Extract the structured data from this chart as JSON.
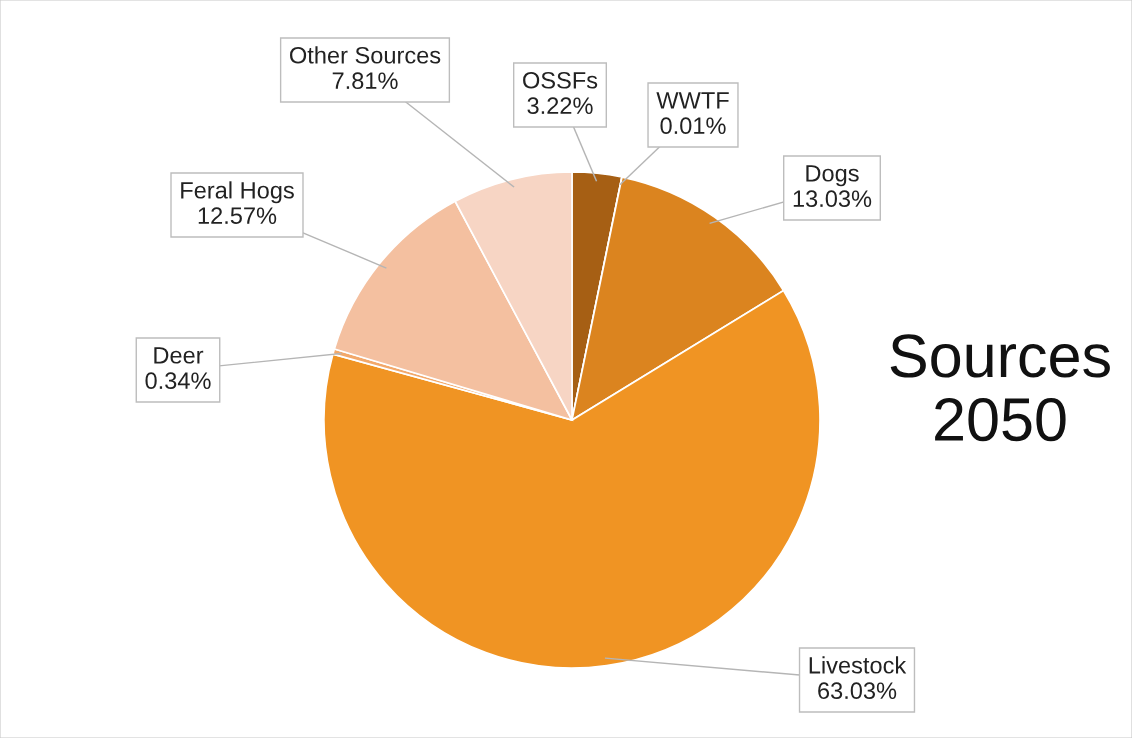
{
  "chart_data": {
    "type": "pie",
    "title": "Sources 2050",
    "categories": [
      "OSSFs",
      "WWTF",
      "Dogs",
      "Livestock",
      "Deer",
      "Feral Hogs",
      "Other Sources"
    ],
    "values": [
      3.22,
      0.01,
      13.03,
      63.03,
      0.34,
      12.57,
      7.81
    ],
    "value_labels": [
      "3.22%",
      "0.01%",
      "13.03%",
      "63.03%",
      "0.34%",
      "12.57%",
      "7.81%"
    ],
    "colors": [
      "#a65f14",
      "#b86a18",
      "#db841f",
      "#f09423",
      "#f2a86a",
      "#f4c0a0",
      "#f7d5c4"
    ],
    "legend": false
  }
}
